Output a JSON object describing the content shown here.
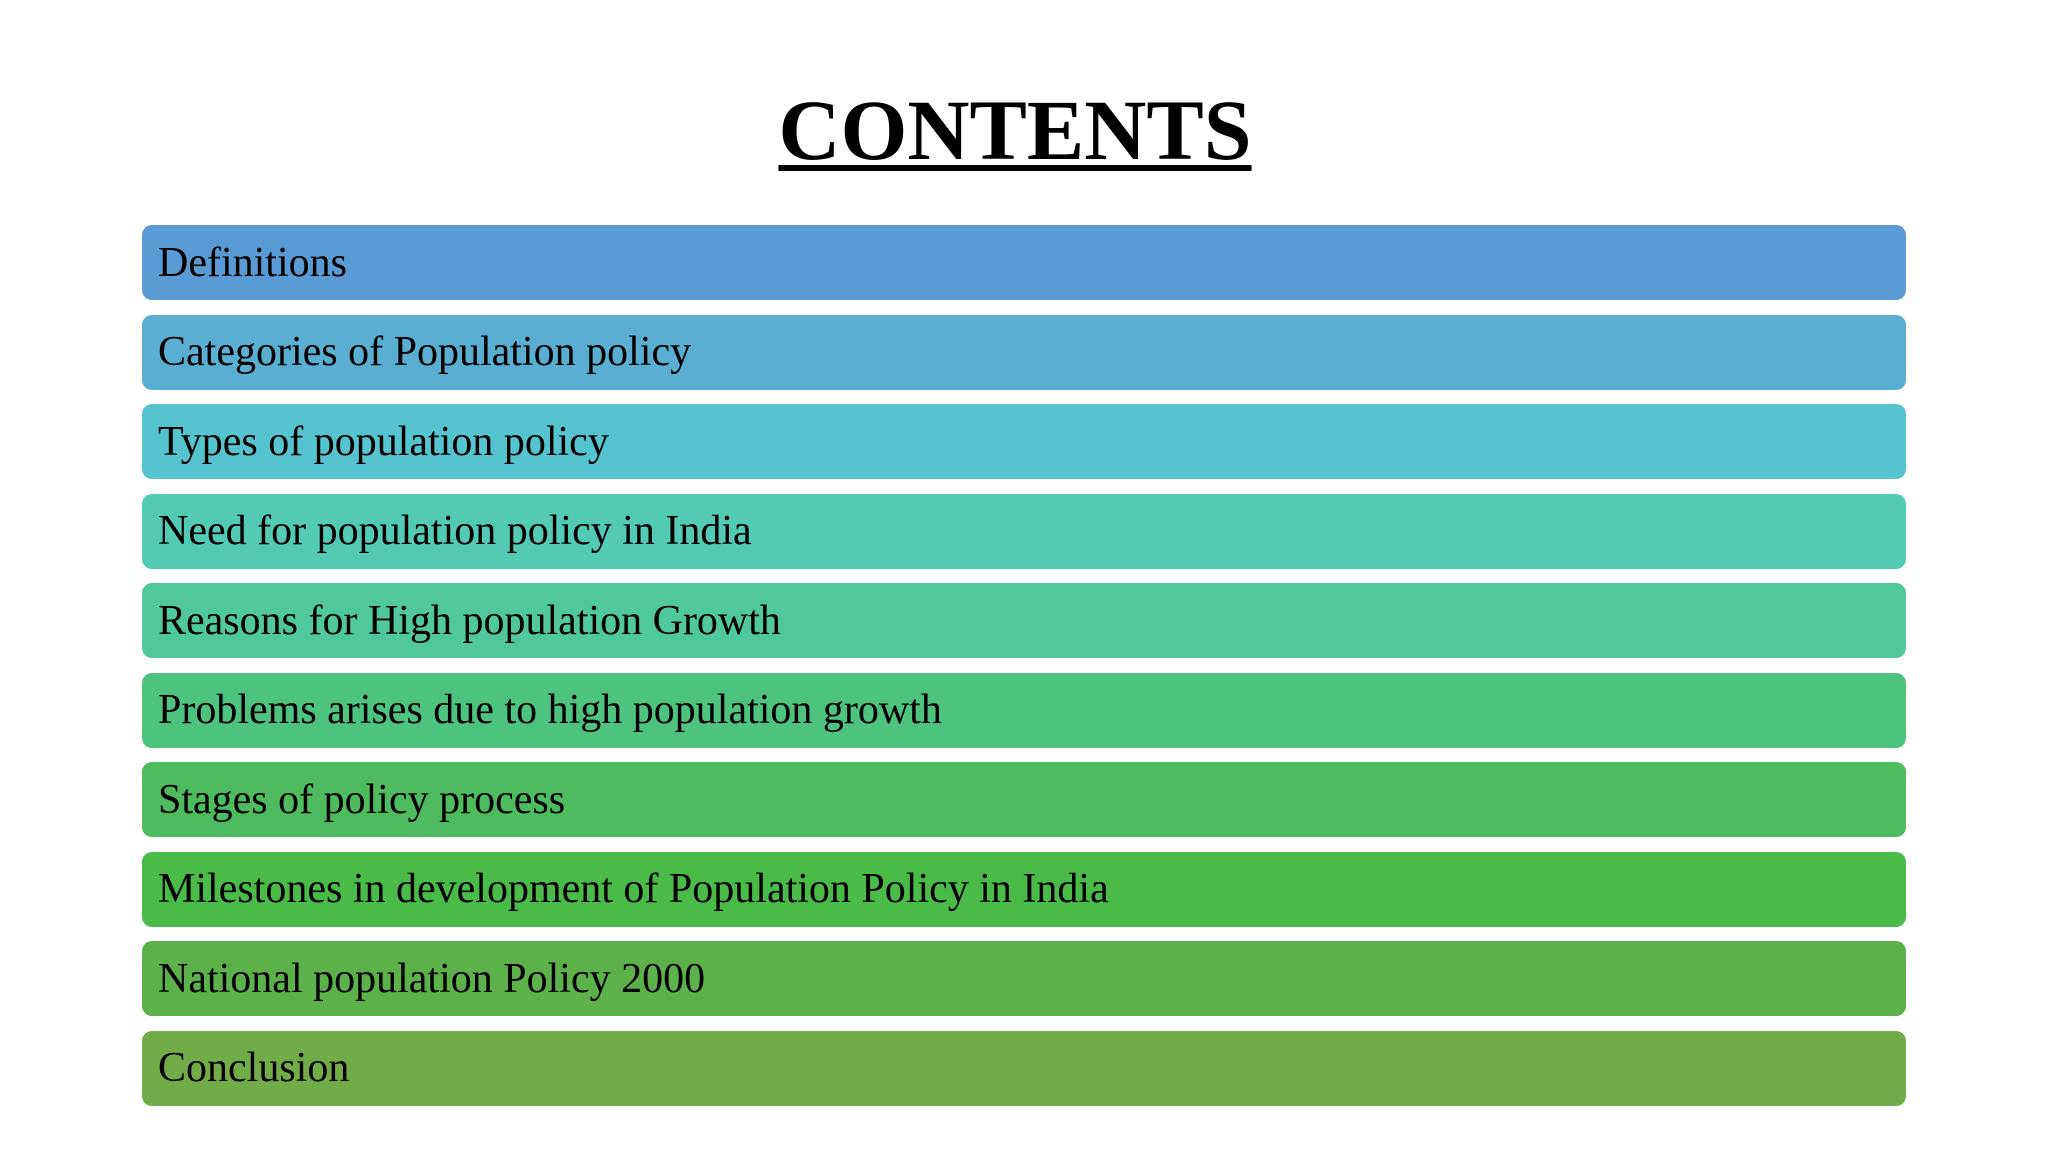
{
  "title": "CONTENTS",
  "items": [
    {
      "label": "Definitions",
      "color": "#5b9bd5"
    },
    {
      "label": "Categories of Population policy",
      "color": "#5aaed2"
    },
    {
      "label": "Types of population policy",
      "color": "#55c4ce"
    },
    {
      "label": "Need for population policy in India",
      "color": "#52cab4"
    },
    {
      "label": "Reasons for High population Growth",
      "color": "#50c89c"
    },
    {
      "label": "Problems arises due to high population growth",
      "color": "#4dc37e"
    },
    {
      "label": "Stages of policy process",
      "color": "#4dbb5e"
    },
    {
      "label": "Milestones in development of Population Policy in India",
      "color": "#4aba48"
    },
    {
      "label": "National population Policy 2000",
      "color": "#5cb14a"
    },
    {
      "label": "Conclusion",
      "color": "#71ac48"
    }
  ]
}
